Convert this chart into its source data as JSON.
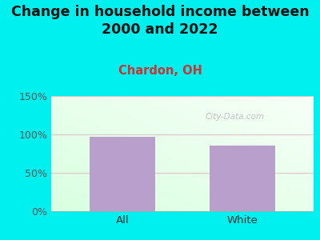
{
  "title": "Change in household income between\n2000 and 2022",
  "subtitle": "Chardon, OH",
  "categories": [
    "All",
    "White"
  ],
  "values": [
    97,
    85
  ],
  "bar_color": "#b89fcc",
  "title_fontsize": 12.5,
  "subtitle_fontsize": 10.5,
  "subtitle_color": "#cc3333",
  "title_color": "#111111",
  "bg_outer_color": "#00f0f0",
  "ylim": [
    0,
    150
  ],
  "yticks": [
    0,
    50,
    100,
    150
  ],
  "ytick_labels": [
    "0%",
    "50%",
    "100%",
    "150%"
  ],
  "watermark": "City-Data.com",
  "plot_grad_left": "#d8f0d0",
  "plot_grad_right": "#f8fff8",
  "plot_grad_top": "#f8fff8"
}
